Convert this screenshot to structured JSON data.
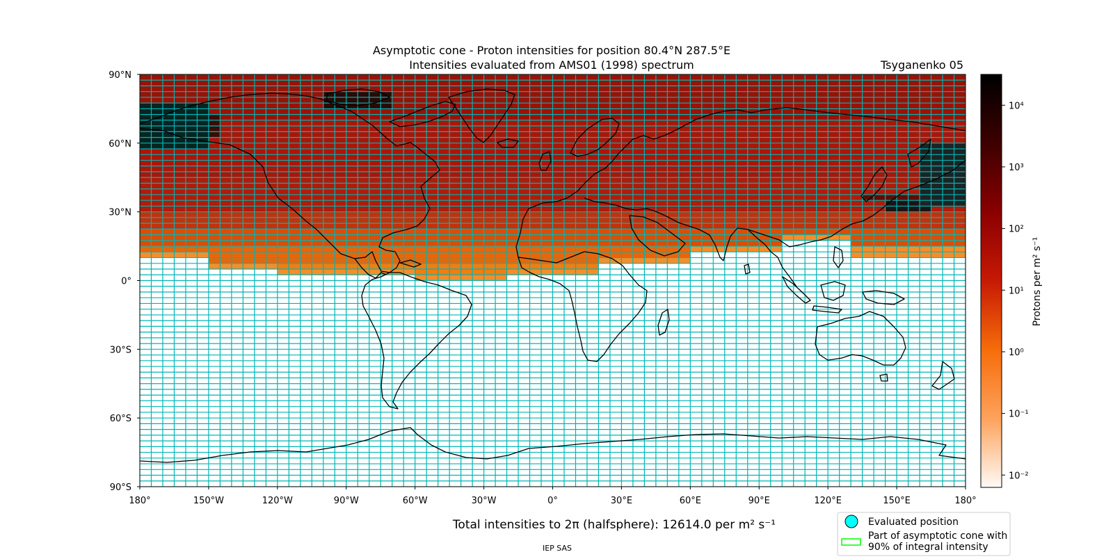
{
  "title": {
    "line1": "Asymptotic cone - Proton intensities for position 80.4°N 287.5°E",
    "line2": "Intensities evaluated from AMS01 (1998) spectrum",
    "model": "Tsyganenko 05"
  },
  "map": {
    "lat_ticks": [
      "90°N",
      "60°N",
      "30°N",
      "0°",
      "30°S",
      "60°S",
      "90°S"
    ],
    "lon_ticks": [
      "180°",
      "150°W",
      "120°W",
      "90°W",
      "60°W",
      "30°W",
      "0°",
      "30°E",
      "60°E",
      "90°E",
      "120°E",
      "150°E",
      "180°"
    ],
    "grid_color": "#00b5b5",
    "empty_cell_color": "#ffffff",
    "land_outline_color": "#000000",
    "grid": {
      "lon_step_deg": 5,
      "lat_step_deg": 2.5,
      "threshold_lat_by_lon_block": [
        {
          "lon_from": -180,
          "lon_to": -150,
          "lat": 12
        },
        {
          "lon_from": -150,
          "lon_to": -120,
          "lat": 8
        },
        {
          "lon_from": -120,
          "lon_to": -60,
          "lat": 5
        },
        {
          "lon_from": -60,
          "lon_to": -20,
          "lat": 3
        },
        {
          "lon_from": -20,
          "lon_to": 20,
          "lat": 6
        },
        {
          "lon_from": 20,
          "lon_to": 60,
          "lat": 11
        },
        {
          "lon_from": 60,
          "lon_to": 100,
          "lat": 15
        },
        {
          "lon_from": 100,
          "lon_to": 130,
          "lat": 20
        },
        {
          "lon_from": 130,
          "lon_to": 180,
          "lat": 14
        }
      ]
    },
    "intensity_levels": [
      {
        "lat_min": 70,
        "color": "#9a1206"
      },
      {
        "lat_min": 45,
        "color": "#ad1508"
      },
      {
        "lat_min": 30,
        "color": "#b01b0a"
      },
      {
        "lat_min": 22,
        "color": "#c4310a"
      },
      {
        "lat_min": 15,
        "color": "#d74f08"
      },
      {
        "lat_min": 8,
        "color": "#e8660a"
      },
      {
        "lat_min": -90,
        "color": "#f27d10"
      }
    ],
    "high_intensity_regions": [
      {
        "lon_min": -180,
        "lon_max": -150,
        "lat_min": 57,
        "lat_max": 77,
        "color": "#062421"
      },
      {
        "lon_min": -150,
        "lon_max": -145,
        "lat_min": 62,
        "lat_max": 72,
        "color": "#3a0c06"
      },
      {
        "lon_min": -100,
        "lon_max": -70,
        "lat_min": 75,
        "lat_max": 82,
        "color": "#2a0a06"
      },
      {
        "lon_min": 160,
        "lon_max": 180,
        "lat_min": 32,
        "lat_max": 60,
        "color": "#1c2424"
      },
      {
        "lon_min": 145,
        "lon_max": 165,
        "lat_min": 30,
        "lat_max": 35,
        "color": "#1c1414"
      },
      {
        "lon_min": 135,
        "lon_max": 170,
        "lat_min": 35,
        "lat_max": 38,
        "color": "#5a0f06"
      }
    ]
  },
  "colorbar": {
    "label": "Protons per m² s⁻¹",
    "ticks": [
      {
        "exponent": 4,
        "text": "10⁴"
      },
      {
        "exponent": 3,
        "text": "10³"
      },
      {
        "exponent": 2,
        "text": "10²"
      },
      {
        "exponent": 1,
        "text": "10¹"
      },
      {
        "exponent": 0,
        "text": "10⁰"
      },
      {
        "exponent": -1,
        "text": "10⁻¹"
      },
      {
        "exponent": -2,
        "text": "10⁻²"
      }
    ],
    "range_exponent": [
      -2.2,
      4.5
    ],
    "gradient": [
      "#fffaf5",
      "#fda25c",
      "#f66d0a",
      "#c71905",
      "#8a0000",
      "#3d0000",
      "#000000"
    ]
  },
  "total_intensity": "Total intensities to 2π (halfsphere): 12614.0 per m² s⁻¹",
  "legend": {
    "evaluated_position": "Evaluated position",
    "cone_line1": "Part of asymptotic cone with",
    "cone_line2": "90% of integral intensity",
    "marker_color": "#00ffff",
    "cone_color": "#00ff00"
  },
  "footer": "IEP SAS"
}
